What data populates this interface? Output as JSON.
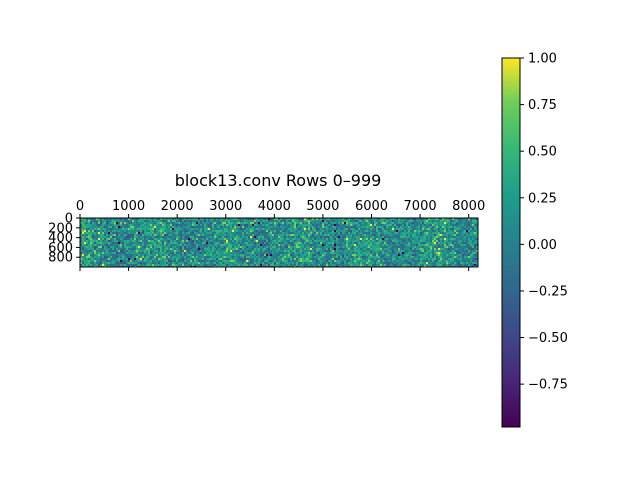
{
  "chart_data": {
    "type": "heatmap",
    "title": "block13.conv Rows 0–999",
    "xlabel": "",
    "ylabel": "",
    "x_range": [
      0,
      8192
    ],
    "y_range": [
      0,
      999
    ],
    "x_ticks": [
      0,
      1000,
      2000,
      3000,
      4000,
      5000,
      6000,
      7000,
      8000
    ],
    "y_ticks": [
      0,
      200,
      400,
      600,
      800
    ],
    "x_axis_position": "top",
    "colormap": "viridis",
    "colorbar": {
      "range": [
        -0.98,
        1.0
      ],
      "ticks": [
        1.0,
        0.75,
        0.5,
        0.25,
        0.0,
        -0.25,
        -0.5,
        -0.75
      ],
      "tick_labels": [
        "1.00",
        "0.75",
        "0.50",
        "0.25",
        "0.00",
        "−0.25",
        "−0.50",
        "−0.75"
      ]
    },
    "colors": {
      "low": "#440154",
      "mid_low": "#31688e",
      "mid": "#21918c",
      "mid_high": "#35b779",
      "high": "#fde725"
    }
  }
}
